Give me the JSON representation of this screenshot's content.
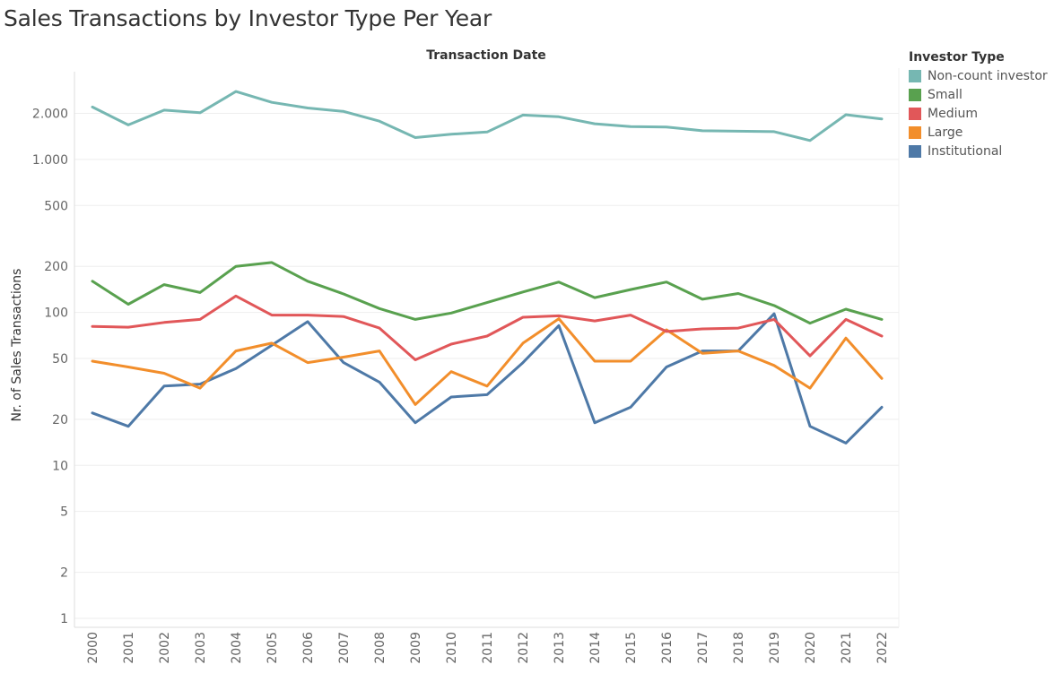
{
  "chart_data": {
    "type": "line",
    "title": "Sales Transactions by Investor Type Per Year",
    "header": "Transaction Date",
    "ylabel": "Nr. of Sales Transactions",
    "xlabel": "",
    "yscale": "log",
    "ylim": [
      0.9,
      4000
    ],
    "y_ticks": [
      1,
      2,
      5,
      10,
      20,
      50,
      100,
      200,
      500,
      1000,
      2000
    ],
    "y_tick_labels": [
      "1",
      "2",
      "5",
      "10",
      "20",
      "50",
      "100",
      "200",
      "500",
      "1.000",
      "2.000"
    ],
    "grid": true,
    "legend_title": "Investor Type",
    "legend_position": "right",
    "x": [
      "2000",
      "2001",
      "2002",
      "2003",
      "2004",
      "2005",
      "2006",
      "2007",
      "2008",
      "2009",
      "2010",
      "2011",
      "2012",
      "2013",
      "2014",
      "2015",
      "2016",
      "2017",
      "2018",
      "2019",
      "2020",
      "2021",
      "2022"
    ],
    "series": [
      {
        "name": "Non-count investor",
        "color": "#76b7b2",
        "values": [
          2200,
          1680,
          2100,
          2020,
          2780,
          2360,
          2170,
          2060,
          1780,
          1390,
          1460,
          1510,
          1950,
          1900,
          1710,
          1640,
          1630,
          1540,
          1530,
          1520,
          1330,
          1960,
          1840
        ]
      },
      {
        "name": "Small",
        "color": "#59a14f",
        "values": [
          160,
          113,
          152,
          135,
          200,
          212,
          160,
          132,
          106,
          90,
          99,
          116,
          136,
          158,
          125,
          141,
          158,
          122,
          133,
          111,
          85,
          105,
          90
        ]
      },
      {
        "name": "Medium",
        "color": "#e15759",
        "values": [
          81,
          80,
          86,
          90,
          128,
          96,
          96,
          94,
          79,
          49,
          62,
          70,
          93,
          95,
          88,
          96,
          75,
          78,
          79,
          90,
          52,
          90,
          70
        ]
      },
      {
        "name": "Large",
        "color": "#f28e2b",
        "values": [
          48,
          44,
          40,
          32,
          56,
          63,
          47,
          51,
          56,
          25,
          41,
          33,
          63,
          91,
          48,
          48,
          77,
          54,
          56,
          45,
          32,
          68,
          37
        ]
      },
      {
        "name": "Institutional",
        "color": "#4e79a7",
        "values": [
          22,
          18,
          33,
          34,
          43,
          61,
          87,
          47,
          35,
          19,
          28,
          29,
          47,
          82,
          19,
          24,
          44,
          56,
          56,
          98,
          18,
          14,
          24
        ]
      }
    ]
  }
}
